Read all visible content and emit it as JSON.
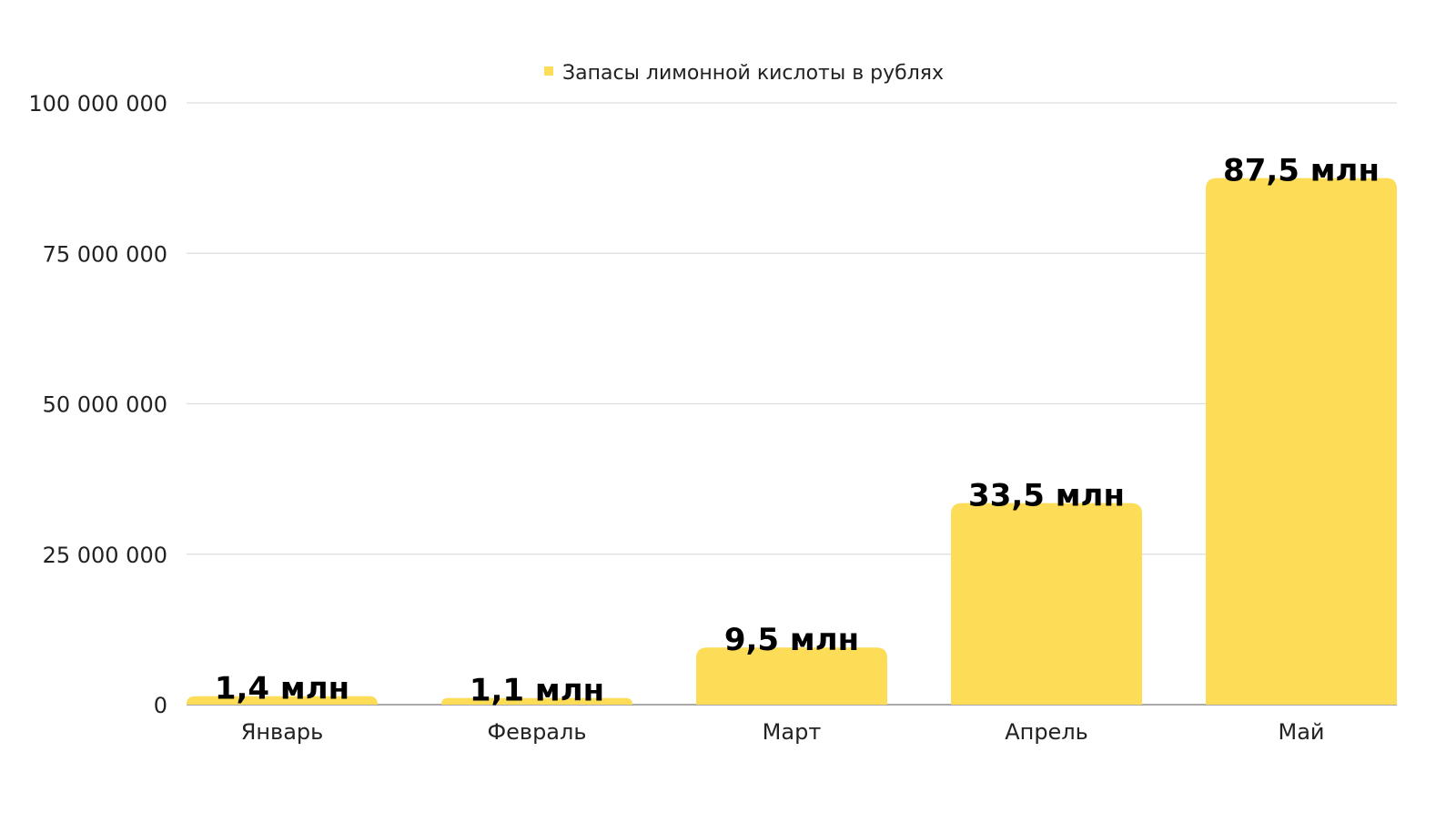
{
  "chart_data": {
    "type": "bar",
    "title": "",
    "xlabel": "",
    "ylabel": "",
    "categories": [
      "Январь",
      "Февраль",
      "Март",
      "Апрель",
      "Май"
    ],
    "series": [
      {
        "name": "Запасы лимонной кислоты в рублях",
        "values": [
          1400000,
          1100000,
          9500000,
          33500000,
          87500000
        ],
        "data_labels": [
          "1,4 млн",
          "1,1 млн",
          "9,5 млн",
          "33,5 млн",
          "87,5 млн"
        ],
        "color": "#FDDC57"
      }
    ],
    "ylim": [
      0,
      100000000
    ],
    "yticks": [
      0,
      25000000,
      50000000,
      75000000,
      100000000
    ],
    "ytick_labels": [
      "0",
      "25 000 000",
      "50 000 000",
      "75 000 000",
      "100 000 000"
    ],
    "grid": true,
    "legend_position": "top-center"
  }
}
